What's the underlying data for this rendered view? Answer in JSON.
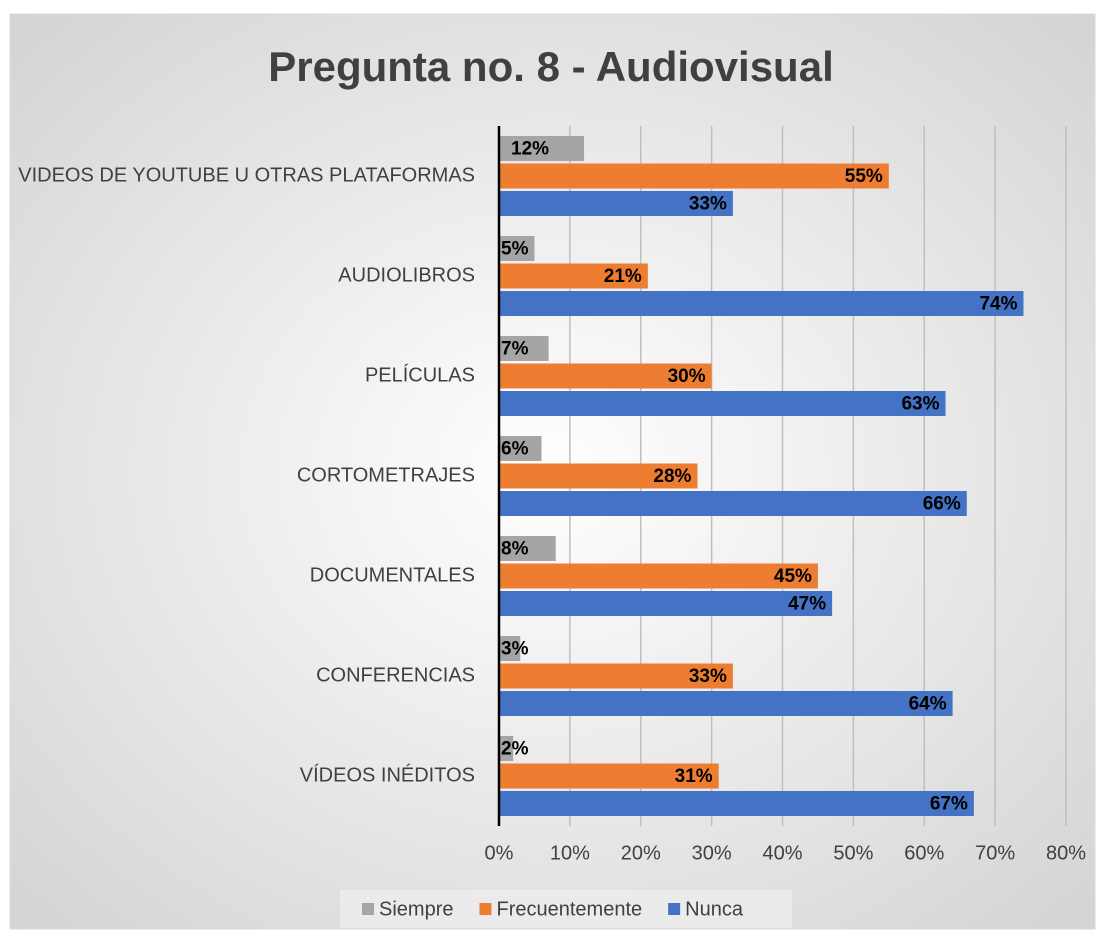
{
  "chart_data": {
    "type": "bar",
    "orientation": "horizontal",
    "title": "Pregunta no. 8 - Audiovisual",
    "categories": [
      "VIDEOS DE YOUTUBE U OTRAS PLATAFORMAS",
      "AUDIOLIBROS",
      "PELÍCULAS",
      "CORTOMETRAJES",
      "DOCUMENTALES",
      "CONFERENCIAS",
      "VÍDEOS INÉDITOS"
    ],
    "series": [
      {
        "name": "Siempre",
        "color": "#a5a5a5",
        "values": [
          12,
          5,
          7,
          6,
          8,
          3,
          2
        ],
        "value_labels": [
          "12%",
          "5%",
          "7%",
          "6%",
          "8%",
          "3%",
          "2%"
        ]
      },
      {
        "name": "Frecuentemente",
        "color": "#ed7d31",
        "values": [
          55,
          21,
          30,
          28,
          45,
          33,
          31
        ],
        "value_labels": [
          "55%",
          "21%",
          "30%",
          "28%",
          "45%",
          "33%",
          "31%"
        ]
      },
      {
        "name": "Nunca",
        "color": "#4472c4",
        "values": [
          33,
          74,
          63,
          66,
          47,
          64,
          67
        ],
        "value_labels": [
          "33%",
          "74%",
          "63%",
          "66%",
          "47%",
          "64%",
          "67%"
        ]
      }
    ],
    "xlim": [
      0,
      80
    ],
    "xticks": [
      {
        "value": 0,
        "label": "0%"
      },
      {
        "value": 10,
        "label": "10%"
      },
      {
        "value": 20,
        "label": "20%"
      },
      {
        "value": 30,
        "label": "30%"
      },
      {
        "value": 40,
        "label": "40%"
      },
      {
        "value": 50,
        "label": "50%"
      },
      {
        "value": 60,
        "label": "60%"
      },
      {
        "value": 70,
        "label": "70%"
      },
      {
        "value": 80,
        "label": "80%"
      }
    ],
    "grid": true,
    "legend": "bottom"
  }
}
